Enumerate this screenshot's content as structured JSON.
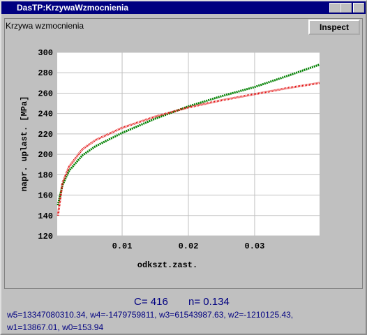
{
  "window": {
    "title": "DasTP:KrzywaWzmocnienia",
    "group_label": "Krzywa wzmocnienia",
    "button": "Inspect",
    "c_label": "C= 416",
    "n_label": "n= 0.134",
    "coef_line1": "w5=13347080310.34, w4=-1479759811, w3=61543987.63, w2=-1210125.43,",
    "coef_line2": "w1=13867.01, w0=153.94"
  },
  "chart_data": {
    "type": "line",
    "xlabel": "odkszt.zast.",
    "ylabel": "napr. uplast. [MPa]",
    "x": [
      0.0003,
      0.001,
      0.002,
      0.004,
      0.006,
      0.01,
      0.015,
      0.02,
      0.025,
      0.03,
      0.035,
      0.0398
    ],
    "series": [
      {
        "color": "#008000",
        "values": [
          150,
          170,
          184,
          199,
          208,
          221,
          235,
          247,
          257,
          266,
          277,
          288
        ]
      },
      {
        "color": "#e00000",
        "values": [
          140,
          172,
          188,
          205,
          214,
          226,
          237,
          246,
          253,
          259,
          265,
          270
        ]
      }
    ],
    "xlim": [
      0.0002,
      0.0398
    ],
    "ylim": [
      120,
      300
    ],
    "xticks": [
      0.01,
      0.02,
      0.03
    ],
    "yticks": [
      120,
      140,
      160,
      180,
      200,
      220,
      240,
      260,
      280,
      300
    ],
    "grid": true
  }
}
